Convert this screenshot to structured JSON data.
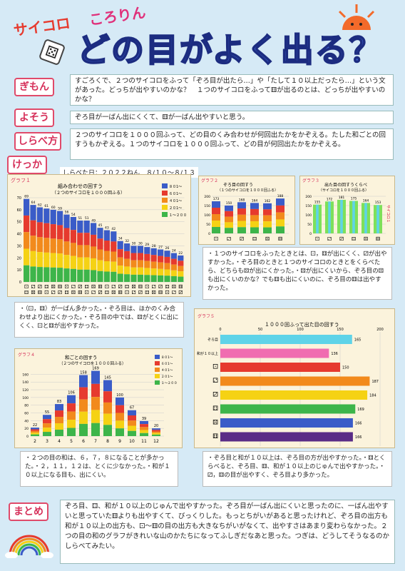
{
  "header": {
    "subtitle_left": "サイコロ",
    "subtitle_right": "ころりん",
    "title": "どの目がよく出る？"
  },
  "sections": {
    "gimon": {
      "label": "ぎもん",
      "text": "すごろくで、２つのサイコロをふって「ぞろ目が出たら…」や「たして１０以上だったら…」という文があった。どっちが出やすいのかな？　１つのサイコロをふって⚅が出るのとは、どっちが出やすいのかな？"
    },
    "yosou": {
      "label": "よそう",
      "text": "ぞろ目が一ばん出にくくて、⚅が一ばん出やすいと思う。"
    },
    "shirabekata": {
      "label": "しらべ方",
      "text": "２つのサイコロを１０００回ふって、どの目のくみ合わせが何回出たかをかぞえる。たした和ごとの回すうもかぞえる。１つのサイコロを１０００回ふって、どの目が何回出たかをかぞえる。"
    },
    "kekka": {
      "label": "けっか",
      "date": "しらべた日：２０２２ねん　８/１０〜８/１３"
    },
    "matome": {
      "label": "まとめ",
      "text": "ぞろ目、⚃、和が１０以上のじゅんで出やすかった。ぞろ目が一ばん出にくいと思ったのに、一ばん出やすいと思っていた⚅よりも出やすくて、びっくりした。もっとちがいがあると思ったけれど、ぞろ目の出方も和が１０以上の出方も、⚀〜⚅の目の出方も大きなちがいがなくて、出やすさはあまり変わらなかった。２つの目の和のグラフがきれいな山のかたちになってふしぎだなあと思った。つぎは、どうしてそうなるのかしらべてみたい。"
    }
  },
  "notes": {
    "n1": "・（⚀，⚅）が一ばん多かった。・ぞろ目は、ほかのくみ合わせより出にくかった。・ぞろ目の中では、⚄がとくに出にくく、⚀と⚅が出やすかった。",
    "n2": "・１つのサイコロをふったときとは、⚀，⚅が出にくく、⚂が出やすかった。・ぞろ目のときと１つのサイコロのときとをくらべたら、どちらも⚄が出にくかった。・⚄が出にくいから、ぞろ目の⚄も出にくいのかな？でも⚅も出にくいのに、ぞろ目の⚅は出やすかった。",
    "n3": "・２つの目の和は、６，７，８になることが多かった。・２，１１，１２は、とくに少なかった。・和が１０以上になる目も、出にくい。",
    "n4": "・ぞろ目と和が１０以上は、ぞろ目の方が出やすかった。・⚅とくらべると、ぞろ目、⚅、和が１０以上のじゅんで出やすかった。・⚂，⚅の目が出やすく、ぞろ目より多かった。"
  },
  "colors": {
    "tag": "#e04a6a",
    "blue": "#3a5cc8",
    "red": "#e63a2e",
    "orange": "#f28a1c",
    "yellow": "#f5d214",
    "green": "#3db54a",
    "cyan": "#5fd3e8",
    "purple": "#5a2c86",
    "pink": "#f06db0"
  },
  "chart_data": [
    {
      "type": "bar",
      "title": "組み合わせの回すう",
      "subtitle": "（２つのサイコロを１０００回ふる）",
      "label": "グラフ１",
      "values": [
        69,
        64,
        62,
        61,
        60,
        59,
        56,
        54,
        51,
        51,
        49,
        45,
        43,
        42,
        34,
        32,
        30,
        30,
        29,
        28,
        27,
        26,
        24,
        22
      ],
      "ylim": [
        0,
        70
      ],
      "legend": [
        "８０1〜",
        "６０1〜",
        "４０1〜",
        "２０1〜",
        "１〜２００"
      ]
    },
    {
      "type": "bar",
      "title": "ぞろ目の回すう",
      "subtitle": "（１つのサイコロを１０００回ふる）",
      "label": "グラフ２",
      "values": [
        173,
        150,
        168,
        164,
        162,
        188
      ],
      "ylim": [
        0,
        200
      ]
    },
    {
      "type": "bar",
      "title": "出た目の回すうくらべ",
      "subtitle": "（サイコロを１０００回ふる）",
      "label": "グラフ３",
      "values": [
        155,
        172,
        181,
        175,
        164,
        153
      ],
      "ylim": [
        0,
        200
      ],
      "legend": [
        "サイコロ１"
      ]
    },
    {
      "type": "bar",
      "title": "和ごとの回すう",
      "subtitle": "（２つのサイコロを１０００回ふる）",
      "label": "グラフ４",
      "categories": [
        "2",
        "3",
        "4",
        "5",
        "6",
        "7",
        "8",
        "9",
        "10",
        "11",
        "12"
      ],
      "values": [
        22,
        55,
        83,
        106,
        158,
        169,
        145,
        100,
        67,
        39,
        20
      ],
      "ylim": [
        0,
        170
      ],
      "legend": [
        "８０1〜",
        "６０1〜",
        "４０1〜",
        "２０1〜",
        "１〜２００"
      ]
    },
    {
      "type": "bar",
      "title": "１０００回ふって出た目の回すう",
      "label": "グラフ５",
      "categories": [
        "ぞろ目",
        "和が１０以上",
        "⚀",
        "⚁",
        "⚂",
        "⚃",
        "⚄",
        "⚅"
      ],
      "values": [
        165,
        136,
        150,
        187,
        184,
        169,
        166,
        166
      ],
      "xlim": [
        0,
        200
      ]
    }
  ]
}
